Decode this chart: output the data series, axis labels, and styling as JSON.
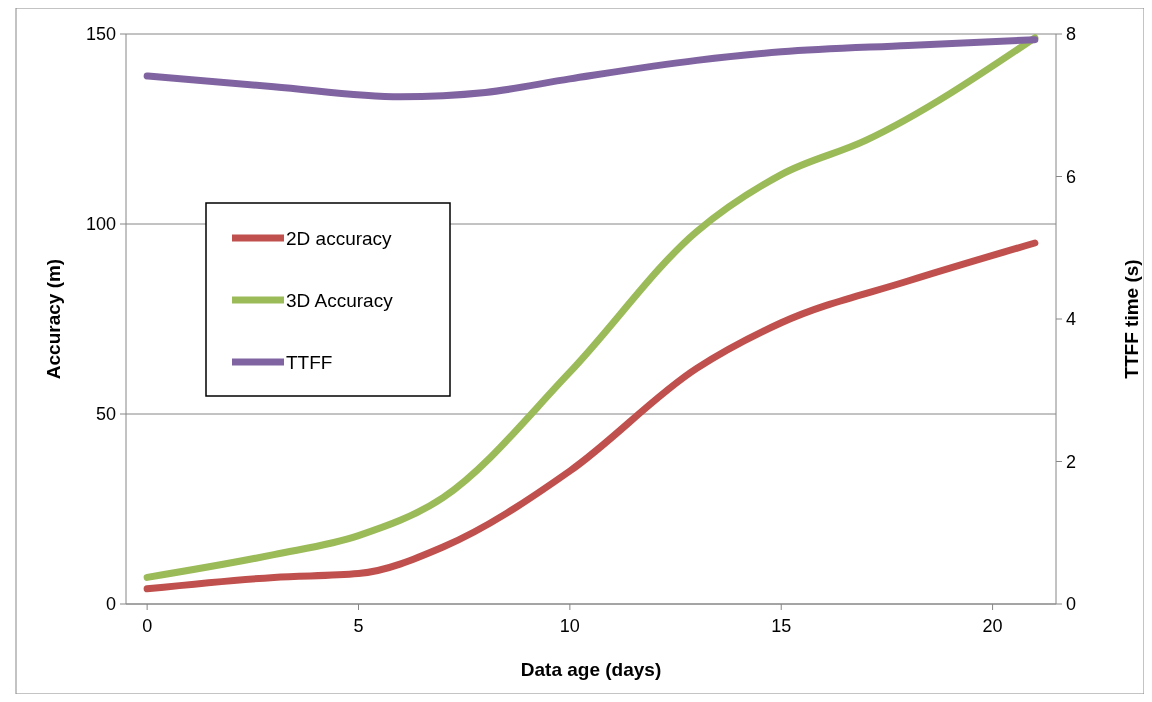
{
  "chart_data": {
    "type": "line",
    "xlabel": "Data age (days)",
    "ylabel": "Accuracy (m)",
    "y2label": "TTFF time (s)",
    "xlim": [
      -0.5,
      21.5
    ],
    "xticks": [
      0,
      5,
      10,
      15,
      20
    ],
    "ylim": [
      0,
      150
    ],
    "yticks": [
      0,
      50,
      100,
      150
    ],
    "y2lim": [
      0,
      8
    ],
    "y2ticks": [
      0,
      2,
      4,
      6,
      8
    ],
    "grid": "y",
    "legend": "left",
    "marker": "none",
    "line_style": "solid",
    "series": [
      {
        "name": "2D accuracy",
        "color": "#c0504d",
        "x": [
          0,
          3,
          5,
          7,
          10,
          13,
          15,
          18,
          21
        ],
        "values": [
          4,
          7,
          8,
          15,
          35,
          62,
          74,
          85,
          95
        ]
      },
      {
        "name": "3D Accuracy",
        "color": "#9bbb59",
        "x": [
          0,
          3,
          5,
          7,
          10,
          13,
          15,
          17,
          21
        ],
        "values": [
          7,
          13,
          18,
          28,
          61,
          98,
          113,
          122,
          149
        ]
      },
      {
        "name": "TTFF",
        "color": "#8064a2",
        "axis": "y2",
        "x": [
          0,
          3,
          6,
          8,
          10,
          13,
          15,
          18,
          21
        ],
        "values": [
          7.41,
          7.26,
          7.12,
          7.18,
          7.37,
          7.63,
          7.75,
          7.84,
          7.92
        ]
      }
    ]
  }
}
